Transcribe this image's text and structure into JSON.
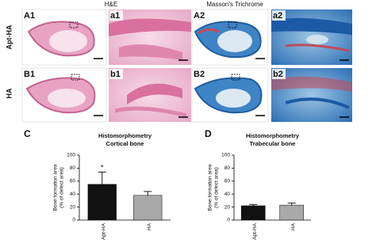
{
  "panels": {
    "headers": [
      "H&E",
      "Masson's Trichrome"
    ],
    "rows": [
      "Apt-HA",
      "HA"
    ],
    "labels": [
      [
        "A1",
        "a1",
        "A2",
        "a2"
      ],
      [
        "B1",
        "b1",
        "B2",
        "b2"
      ]
    ]
  },
  "chart_data": [
    {
      "type": "bar",
      "label": "C",
      "title": "Histomorphometry",
      "subtitle": "Cortical bone",
      "ylabel": [
        "Bone formation area",
        "(% of defect area)"
      ],
      "categories": [
        "Apt-HA",
        "HA"
      ],
      "values": [
        55,
        38
      ],
      "errors": [
        19,
        6
      ],
      "colors": [
        "#111111",
        "#a9a9a9"
      ],
      "annotation": "*",
      "ylim": [
        0,
        100
      ],
      "yticks": [
        0,
        20,
        40,
        60,
        80,
        100
      ]
    },
    {
      "type": "bar",
      "label": "D",
      "title": "Histomorphometry",
      "subtitle": "Trabecular bone",
      "ylabel": [
        "Bone formation area",
        "(% of defect area)"
      ],
      "categories": [
        "Apt-HA",
        "HA"
      ],
      "values": [
        22,
        23
      ],
      "errors": [
        2,
        3
      ],
      "colors": [
        "#111111",
        "#a9a9a9"
      ],
      "ylim": [
        0,
        100
      ],
      "yticks": [
        0,
        20,
        40,
        60,
        80,
        100
      ]
    }
  ]
}
